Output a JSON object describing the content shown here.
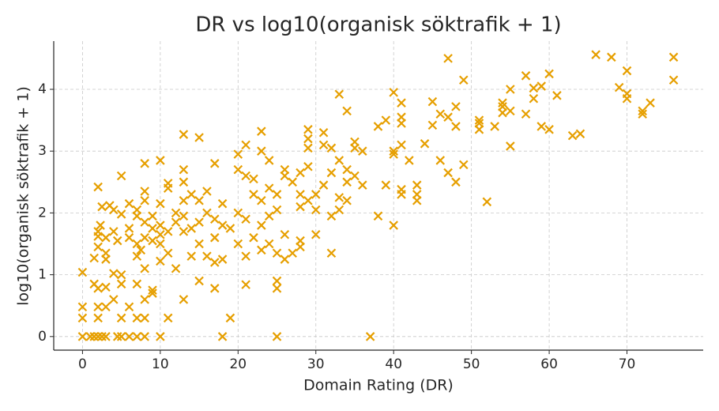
{
  "chart_data": {
    "type": "scatter",
    "title": "DR vs log10(organisk söktrafik + 1)",
    "x_label": "Domain Rating (DR)",
    "y_label": "log10(organisk söktrafik + 1)",
    "marker": "x",
    "grid": true,
    "xlim": [
      -3.7,
      79.8
    ],
    "ylim": [
      -0.22,
      4.78
    ],
    "xticks": [
      0,
      10,
      20,
      30,
      40,
      50,
      60,
      70
    ],
    "yticks": [
      0,
      1,
      2,
      3,
      4
    ],
    "series": [
      {
        "color": "#e69f00",
        "x": [
          0,
          1,
          1.5,
          2,
          2.5,
          3,
          4.5,
          5,
          6,
          7,
          8,
          10,
          18,
          25,
          37,
          0,
          0,
          2,
          2,
          3,
          5,
          6,
          7,
          8,
          11,
          19,
          0,
          1.5,
          2,
          4,
          3,
          4,
          5,
          7,
          8,
          9,
          9,
          13,
          15,
          17,
          21,
          25,
          25,
          1.5,
          2,
          2,
          2,
          2.3,
          2,
          2.5,
          3,
          3,
          3,
          3.5,
          4,
          4,
          4.5,
          5,
          5,
          5,
          6,
          6,
          6,
          7,
          7,
          7,
          7,
          7.5,
          8,
          8,
          8,
          8,
          8,
          8,
          9,
          9,
          9,
          10,
          10,
          10,
          10,
          10,
          10,
          11,
          11,
          11,
          11,
          12,
          12,
          12,
          13,
          13,
          13,
          13,
          13,
          13,
          14,
          14,
          14,
          15,
          15,
          15,
          15,
          16,
          16,
          16,
          17,
          17,
          17,
          17,
          18,
          18,
          18,
          19,
          20,
          20,
          20,
          20,
          21,
          21,
          21,
          21,
          22,
          22,
          22,
          23,
          23,
          23,
          23,
          23,
          24,
          24,
          24,
          24,
          25,
          25,
          25,
          26,
          26,
          26,
          26,
          27,
          27,
          28,
          28,
          28,
          28,
          28,
          29,
          29,
          29,
          29,
          29,
          30,
          30,
          30,
          31,
          31,
          31,
          32,
          32,
          32,
          32,
          33,
          33,
          33,
          33,
          34,
          34,
          34,
          34,
          35,
          35,
          35,
          36,
          36,
          38,
          38,
          39,
          39,
          40,
          40,
          40,
          40,
          41,
          41,
          41,
          41,
          41,
          41,
          42,
          43,
          43,
          43,
          44,
          45,
          45,
          46,
          46,
          47,
          47,
          47,
          48,
          48,
          48,
          49,
          49,
          51,
          51,
          51,
          52,
          53,
          54,
          54,
          54,
          55,
          55,
          55,
          57,
          57,
          58,
          58,
          59,
          59,
          60,
          60,
          61,
          63,
          64,
          66,
          68,
          69,
          70,
          70,
          70,
          72,
          72,
          73,
          76,
          76
        ],
        "values": [
          0,
          0,
          0,
          0,
          0,
          0,
          0,
          0,
          0,
          0,
          0,
          0,
          0,
          0,
          0,
          0.3,
          0.48,
          0.3,
          0.48,
          0.48,
          0.3,
          0.48,
          0.3,
          0.3,
          0.3,
          0.3,
          1.04,
          0.85,
          0.78,
          0.6,
          0.8,
          1.02,
          0.85,
          0.85,
          0.6,
          0.75,
          0.7,
          0.6,
          0.9,
          0.78,
          0.84,
          0.9,
          0.78,
          1.27,
          1.45,
          1.62,
          1.7,
          1.8,
          2.42,
          2.1,
          1.35,
          1.25,
          1.6,
          2.12,
          2.05,
          1.7,
          1.55,
          1.0,
          2.6,
          1.98,
          1.6,
          1.75,
          2.15,
          1.3,
          1.5,
          1.95,
          2.05,
          1.4,
          1.1,
          1.6,
          1.85,
          2.2,
          2.35,
          2.8,
          1.55,
          1.75,
          1.95,
          1.22,
          1.5,
          1.65,
          1.8,
          2.15,
          2.85,
          1.35,
          1.7,
          2.4,
          2.48,
          1.1,
          1.85,
          2.0,
          1.7,
          1.95,
          2.2,
          2.5,
          2.7,
          3.27,
          1.3,
          1.75,
          2.3,
          1.5,
          1.85,
          2.2,
          3.22,
          1.3,
          2.0,
          2.35,
          1.2,
          1.6,
          1.9,
          2.8,
          1.25,
          1.8,
          2.15,
          1.75,
          1.5,
          2.0,
          2.7,
          2.95,
          1.3,
          1.9,
          2.6,
          3.1,
          1.6,
          2.3,
          2.55,
          1.4,
          1.8,
          2.2,
          3.0,
          3.32,
          1.5,
          1.95,
          2.4,
          2.85,
          1.35,
          2.05,
          2.3,
          1.25,
          1.65,
          2.6,
          2.7,
          1.35,
          2.5,
          1.45,
          1.55,
          2.1,
          2.3,
          2.65,
          2.2,
          2.75,
          3.05,
          3.2,
          3.35,
          1.65,
          2.05,
          2.3,
          2.45,
          3.1,
          3.3,
          1.35,
          1.95,
          2.65,
          3.05,
          2.05,
          2.25,
          2.85,
          3.92,
          2.2,
          2.5,
          2.7,
          3.65,
          2.6,
          3.05,
          3.15,
          2.45,
          3.0,
          1.95,
          3.4,
          2.45,
          3.5,
          1.8,
          2.95,
          3.0,
          3.95,
          2.3,
          2.38,
          3.1,
          3.45,
          3.55,
          3.78,
          2.85,
          2.2,
          2.3,
          2.45,
          3.12,
          3.42,
          3.8,
          2.85,
          3.6,
          2.65,
          3.55,
          4.5,
          2.5,
          3.4,
          3.72,
          2.78,
          4.15,
          3.35,
          3.45,
          3.5,
          2.18,
          3.4,
          3.62,
          3.72,
          3.78,
          3.65,
          4.0,
          3.08,
          3.6,
          4.22,
          3.85,
          4.02,
          3.4,
          4.05,
          3.35,
          4.25,
          3.9,
          3.25,
          3.28,
          4.56,
          4.52,
          4.03,
          3.85,
          3.93,
          4.3,
          3.6,
          3.65,
          3.78,
          4.52,
          4.15
        ]
      }
    ]
  }
}
